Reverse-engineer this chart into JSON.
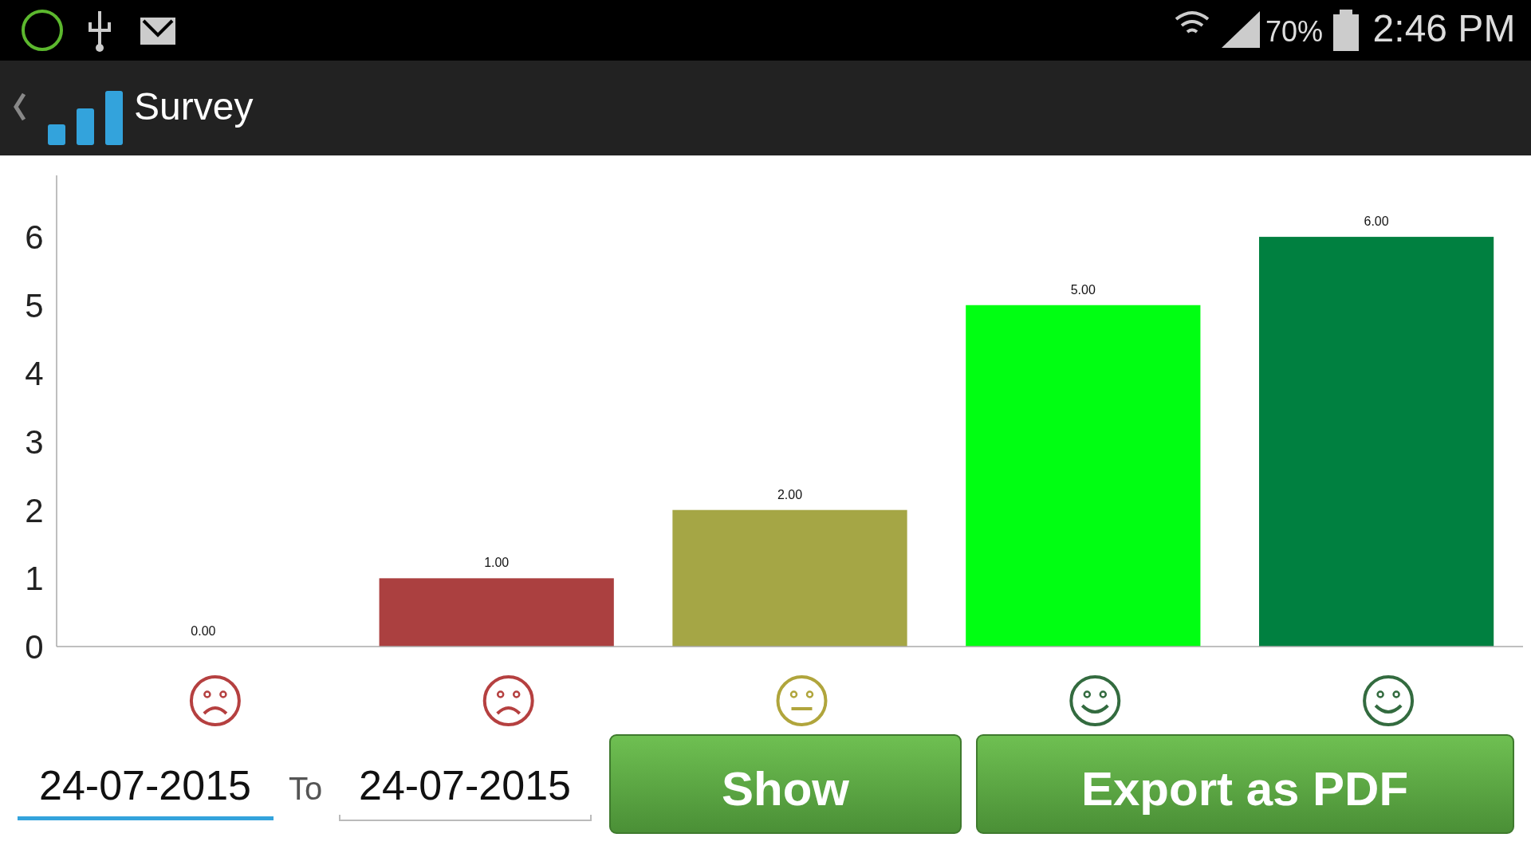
{
  "chart_data": {
    "type": "bar",
    "title": "Survey",
    "categories": [
      null,
      null,
      null,
      null,
      null
    ],
    "values": [
      0,
      1,
      2,
      5,
      6
    ],
    "colors": [
      "#ab4040",
      "#ab4040",
      "#a5a645",
      "#00ff12",
      "#008040"
    ],
    "value_labels": [
      "0.00",
      "1.00",
      "2.00",
      "5.00",
      "6.00"
    ],
    "ylim": [
      0,
      6.9
    ],
    "yticks": [
      0,
      1,
      2,
      3,
      4,
      5,
      6
    ],
    "annotations": [
      "70%",
      "2:46 PM",
      "24-07-2015",
      "To",
      "24-07-2015",
      "Show",
      "Export as PDF"
    ]
  }
}
